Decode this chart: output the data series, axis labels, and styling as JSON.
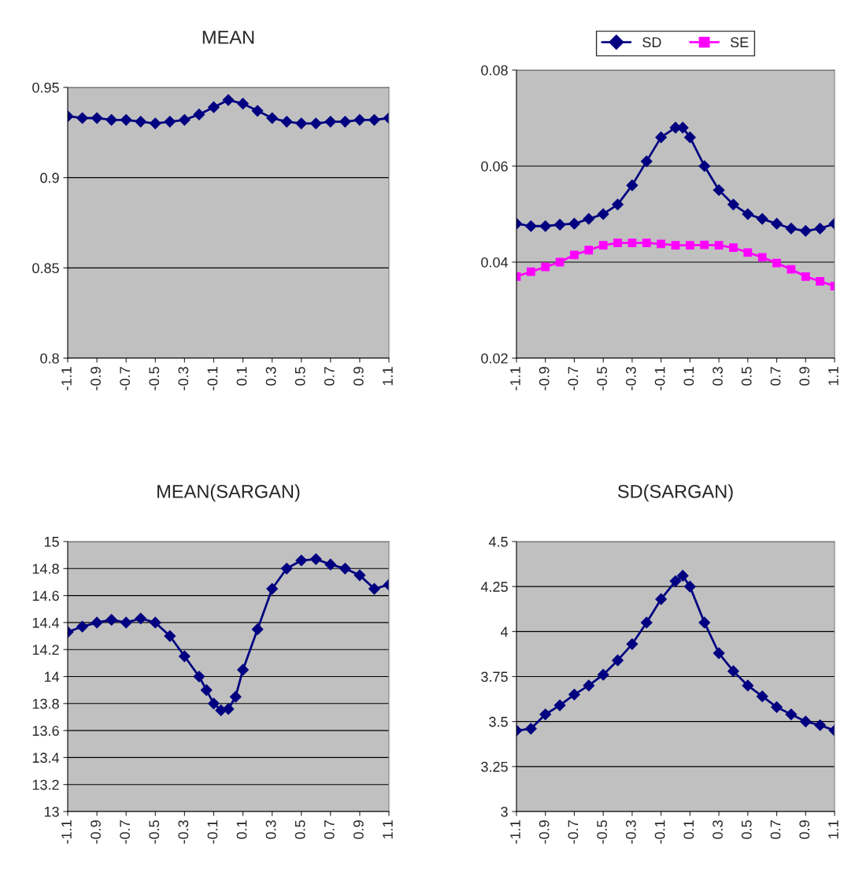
{
  "chart_data": [
    {
      "type": "line",
      "title": "MEAN",
      "xlim": [
        -1.1,
        1.1
      ],
      "xticks": [
        -1.1,
        -0.9,
        -0.7,
        -0.5,
        -0.3,
        -0.1,
        0.1,
        0.3,
        0.5,
        0.7,
        0.9,
        1.1
      ],
      "ylim": [
        0.8,
        0.95
      ],
      "yticks": [
        0.8,
        0.85,
        0.9,
        0.95
      ],
      "grid": "y",
      "marker": "diamond",
      "legend": false,
      "series": [
        {
          "color": "#000080",
          "x": [
            -1.1,
            -1.0,
            -0.9,
            -0.8,
            -0.7,
            -0.6,
            -0.5,
            -0.4,
            -0.3,
            -0.2,
            -0.1,
            0.0,
            0.1,
            0.2,
            0.3,
            0.4,
            0.5,
            0.6,
            0.7,
            0.8,
            0.9,
            1.0,
            1.1
          ],
          "values": [
            0.934,
            0.933,
            0.933,
            0.932,
            0.932,
            0.931,
            0.93,
            0.931,
            0.932,
            0.935,
            0.939,
            0.943,
            0.941,
            0.937,
            0.933,
            0.931,
            0.93,
            0.93,
            0.931,
            0.931,
            0.932,
            0.932,
            0.933
          ]
        }
      ]
    },
    {
      "type": "line",
      "xlim": [
        -1.1,
        1.1
      ],
      "xticks": [
        -1.1,
        -0.9,
        -0.7,
        -0.5,
        -0.3,
        -0.1,
        0.1,
        0.3,
        0.5,
        0.7,
        0.9,
        1.1
      ],
      "ylim": [
        0.02,
        0.08
      ],
      "yticks": [
        0.02,
        0.04,
        0.06,
        0.08
      ],
      "grid": "y",
      "legend": "top",
      "series": [
        {
          "name": "SD",
          "color": "#000080",
          "marker": "diamond",
          "x": [
            -1.1,
            -1.0,
            -0.9,
            -0.8,
            -0.7,
            -0.6,
            -0.5,
            -0.4,
            -0.3,
            -0.2,
            -0.1,
            0.0,
            0.05,
            0.1,
            0.2,
            0.3,
            0.4,
            0.5,
            0.6,
            0.7,
            0.8,
            0.9,
            1.0,
            1.1
          ],
          "values": [
            0.048,
            0.0475,
            0.0475,
            0.0478,
            0.048,
            0.049,
            0.05,
            0.052,
            0.056,
            0.061,
            0.066,
            0.068,
            0.068,
            0.066,
            0.06,
            0.055,
            0.052,
            0.05,
            0.049,
            0.048,
            0.047,
            0.0465,
            0.047,
            0.048
          ]
        },
        {
          "name": "SE",
          "color": "#ff00ff",
          "marker": "square",
          "x": [
            -1.1,
            -1.0,
            -0.9,
            -0.8,
            -0.7,
            -0.6,
            -0.5,
            -0.4,
            -0.3,
            -0.2,
            -0.1,
            0.0,
            0.1,
            0.2,
            0.3,
            0.4,
            0.5,
            0.6,
            0.7,
            0.8,
            0.9,
            1.0,
            1.1
          ],
          "values": [
            0.037,
            0.038,
            0.039,
            0.04,
            0.0415,
            0.0425,
            0.0435,
            0.044,
            0.044,
            0.044,
            0.0438,
            0.0435,
            0.0435,
            0.0436,
            0.0435,
            0.043,
            0.042,
            0.041,
            0.0398,
            0.0385,
            0.037,
            0.036,
            0.035
          ]
        }
      ]
    },
    {
      "type": "line",
      "title": "MEAN(SARGAN)",
      "xlim": [
        -1.1,
        1.1
      ],
      "xticks": [
        -1.1,
        -0.9,
        -0.7,
        -0.5,
        -0.3,
        -0.1,
        0.1,
        0.3,
        0.5,
        0.7,
        0.9,
        1.1
      ],
      "ylim": [
        13,
        15
      ],
      "yticks": [
        13,
        13.2,
        13.4,
        13.6,
        13.8,
        14,
        14.2,
        14.4,
        14.6,
        14.8,
        15
      ],
      "grid": "y",
      "marker": "diamond",
      "legend": false,
      "series": [
        {
          "color": "#000080",
          "x": [
            -1.1,
            -1.0,
            -0.9,
            -0.8,
            -0.7,
            -0.6,
            -0.5,
            -0.4,
            -0.3,
            -0.2,
            -0.15,
            -0.1,
            -0.05,
            0.0,
            0.05,
            0.1,
            0.2,
            0.3,
            0.4,
            0.5,
            0.6,
            0.7,
            0.8,
            0.9,
            1.0,
            1.1
          ],
          "values": [
            14.33,
            14.37,
            14.4,
            14.42,
            14.4,
            14.43,
            14.4,
            14.3,
            14.15,
            14.0,
            13.9,
            13.8,
            13.75,
            13.76,
            13.85,
            14.05,
            14.35,
            14.65,
            14.8,
            14.86,
            14.87,
            14.83,
            14.8,
            14.75,
            14.65,
            14.68
          ]
        }
      ]
    },
    {
      "type": "line",
      "title": "SD(SARGAN)",
      "xlim": [
        -1.1,
        1.1
      ],
      "xticks": [
        -1.1,
        -0.9,
        -0.7,
        -0.5,
        -0.3,
        -0.1,
        0.1,
        0.3,
        0.5,
        0.7,
        0.9,
        1.1
      ],
      "ylim": [
        3,
        4.5
      ],
      "yticks": [
        3,
        3.25,
        3.5,
        3.75,
        4,
        4.25,
        4.5
      ],
      "grid": "y",
      "marker": "diamond",
      "legend": false,
      "series": [
        {
          "color": "#000080",
          "x": [
            -1.1,
            -1.0,
            -0.9,
            -0.8,
            -0.7,
            -0.6,
            -0.5,
            -0.4,
            -0.3,
            -0.2,
            -0.1,
            0.0,
            0.05,
            0.1,
            0.2,
            0.3,
            0.4,
            0.5,
            0.6,
            0.7,
            0.8,
            0.9,
            1.0,
            1.1
          ],
          "values": [
            3.45,
            3.46,
            3.54,
            3.59,
            3.65,
            3.7,
            3.76,
            3.84,
            3.93,
            4.05,
            4.18,
            4.28,
            4.31,
            4.25,
            4.05,
            3.88,
            3.78,
            3.7,
            3.64,
            3.58,
            3.54,
            3.5,
            3.48,
            3.45
          ]
        }
      ]
    }
  ]
}
